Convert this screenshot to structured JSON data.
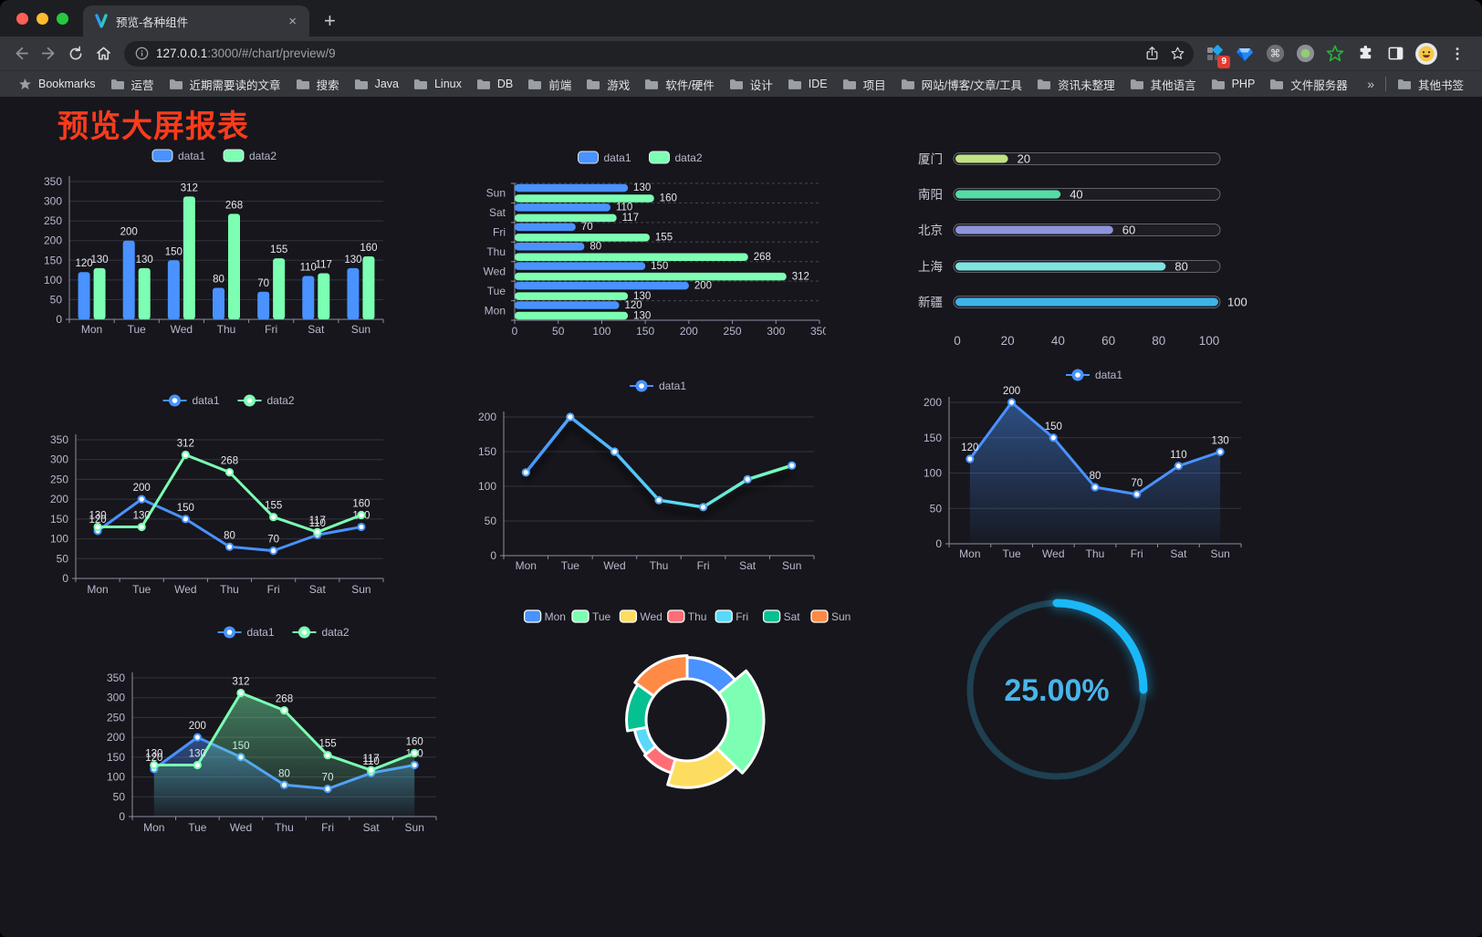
{
  "theme": {
    "content_bg": "#16161c",
    "text": "#b9b8ce",
    "axis": "#8f8fa3",
    "grid": "#34343e",
    "value_label": "#e6e6ec",
    "title_color": "#fa3b1c"
  },
  "browser": {
    "window_buttons": [
      "close",
      "minimize",
      "zoom"
    ],
    "tab": {
      "title": "预览-各种组件",
      "close_icon": "×",
      "new_tab_icon": "+"
    },
    "address": {
      "host": "127.0.0.1",
      "path": ":3000/#/chart/preview/9"
    },
    "extensions": {
      "badge": "9"
    },
    "bookmarks_bar": {
      "label": "Bookmarks",
      "folders": [
        "运营",
        "近期需要读的文章",
        "搜索",
        "Java",
        "Linux",
        "DB",
        "前端",
        "游戏",
        "软件/硬件",
        "设计",
        "IDE",
        "项目",
        "网站/博客/文章/工具",
        "资讯未整理",
        "其他语言",
        "PHP",
        "文件服务器"
      ],
      "overflow": "»",
      "other": "其他书签"
    }
  },
  "page": {
    "title": "预览大屏报表"
  },
  "chart_data": [
    {
      "id": "bar-vertical",
      "type": "bar",
      "categories": [
        "Mon",
        "Tue",
        "Wed",
        "Thu",
        "Fri",
        "Sat",
        "Sun"
      ],
      "series": [
        {
          "name": "data1",
          "color": "#4992ff",
          "values": [
            120,
            200,
            150,
            80,
            70,
            110,
            130
          ]
        },
        {
          "name": "data2",
          "color": "#7cffb2",
          "values": [
            130,
            130,
            312,
            268,
            155,
            117,
            160
          ]
        }
      ],
      "ylim": [
        0,
        350
      ],
      "ytick_step": 50,
      "legend_position": "top",
      "grid": true,
      "show_labels": true
    },
    {
      "id": "bar-horizontal",
      "type": "hbar",
      "categories": [
        "Mon",
        "Tue",
        "Wed",
        "Thu",
        "Fri",
        "Sat",
        "Sun"
      ],
      "series": [
        {
          "name": "data1",
          "color": "#4992ff",
          "values": [
            120,
            200,
            150,
            80,
            70,
            110,
            130
          ]
        },
        {
          "name": "data2",
          "color": "#7cffb2",
          "values": [
            130,
            130,
            312,
            268,
            155,
            117,
            160
          ]
        }
      ],
      "xlim": [
        0,
        350
      ],
      "xtick_step": 50,
      "legend_position": "top",
      "show_labels": true
    },
    {
      "id": "capsule-progress",
      "type": "capsule",
      "categories": [
        "厦门",
        "南阳",
        "北京",
        "上海",
        "新疆"
      ],
      "values": [
        20,
        40,
        60,
        80,
        100
      ],
      "colors": [
        "#c0e383",
        "#55dca5",
        "#8f93dc",
        "#7fe3e0",
        "#3cb4e7"
      ],
      "xlim": [
        0,
        100
      ],
      "xticks": [
        0,
        20,
        40,
        60,
        80,
        100
      ]
    },
    {
      "id": "line-two-series",
      "type": "line",
      "categories": [
        "Mon",
        "Tue",
        "Wed",
        "Thu",
        "Fri",
        "Sat",
        "Sun"
      ],
      "series": [
        {
          "name": "data1",
          "color": "#4992ff",
          "values": [
            120,
            200,
            150,
            80,
            70,
            110,
            130
          ]
        },
        {
          "name": "data2",
          "color": "#7cffb2",
          "values": [
            130,
            130,
            312,
            268,
            155,
            117,
            160
          ]
        }
      ],
      "ylim": [
        0,
        350
      ],
      "ytick_step": 50,
      "legend_position": "top",
      "show_labels": true
    },
    {
      "id": "line-gradient",
      "type": "line",
      "categories": [
        "Mon",
        "Tue",
        "Wed",
        "Thu",
        "Fri",
        "Sat",
        "Sun"
      ],
      "series": [
        {
          "name": "data1",
          "color": "#4992ff",
          "gradient": [
            "#4992ff",
            "#7cffb2"
          ],
          "values": [
            120,
            200,
            150,
            80,
            70,
            110,
            130
          ]
        }
      ],
      "ylim": [
        0,
        200
      ],
      "ytick_step": 50,
      "legend_position": "top",
      "show_labels": false,
      "shadow": true
    },
    {
      "id": "area-single",
      "type": "line",
      "categories": [
        "Mon",
        "Tue",
        "Wed",
        "Thu",
        "Fri",
        "Sat",
        "Sun"
      ],
      "series": [
        {
          "name": "data1",
          "color": "#4992ff",
          "area": true,
          "values": [
            120,
            200,
            150,
            80,
            70,
            110,
            130
          ]
        }
      ],
      "ylim": [
        0,
        200
      ],
      "ytick_step": 50,
      "legend_position": "top",
      "show_labels": true
    },
    {
      "id": "area-two-series",
      "type": "line",
      "categories": [
        "Mon",
        "Tue",
        "Wed",
        "Thu",
        "Fri",
        "Sat",
        "Sun"
      ],
      "series": [
        {
          "name": "data1",
          "color": "#4992ff",
          "area": true,
          "values": [
            120,
            200,
            150,
            80,
            70,
            110,
            130
          ]
        },
        {
          "name": "data2",
          "color": "#7cffb2",
          "area": true,
          "values": [
            130,
            130,
            312,
            268,
            155,
            117,
            160
          ]
        }
      ],
      "ylim": [
        0,
        350
      ],
      "ytick_step": 50,
      "legend_position": "top",
      "show_labels": true
    },
    {
      "id": "pie-rose",
      "type": "pie",
      "mode": "rose-radius",
      "donut": true,
      "categories": [
        "Mon",
        "Tue",
        "Wed",
        "Thu",
        "Fri",
        "Sat",
        "Sun"
      ],
      "values": [
        120,
        200,
        150,
        80,
        70,
        110,
        130
      ],
      "colors": [
        "#4992ff",
        "#7cffb2",
        "#fddd60",
        "#ff6e76",
        "#58d9f9",
        "#05c091",
        "#ff8a45"
      ],
      "border_color": "#ffffff",
      "legend_position": "top"
    },
    {
      "id": "gauge-progress",
      "type": "gauge",
      "value": 25,
      "label": "25.00%",
      "color": "#1ab8f8",
      "track_color": "#1e4050",
      "text_color": "#49b5ea"
    }
  ]
}
